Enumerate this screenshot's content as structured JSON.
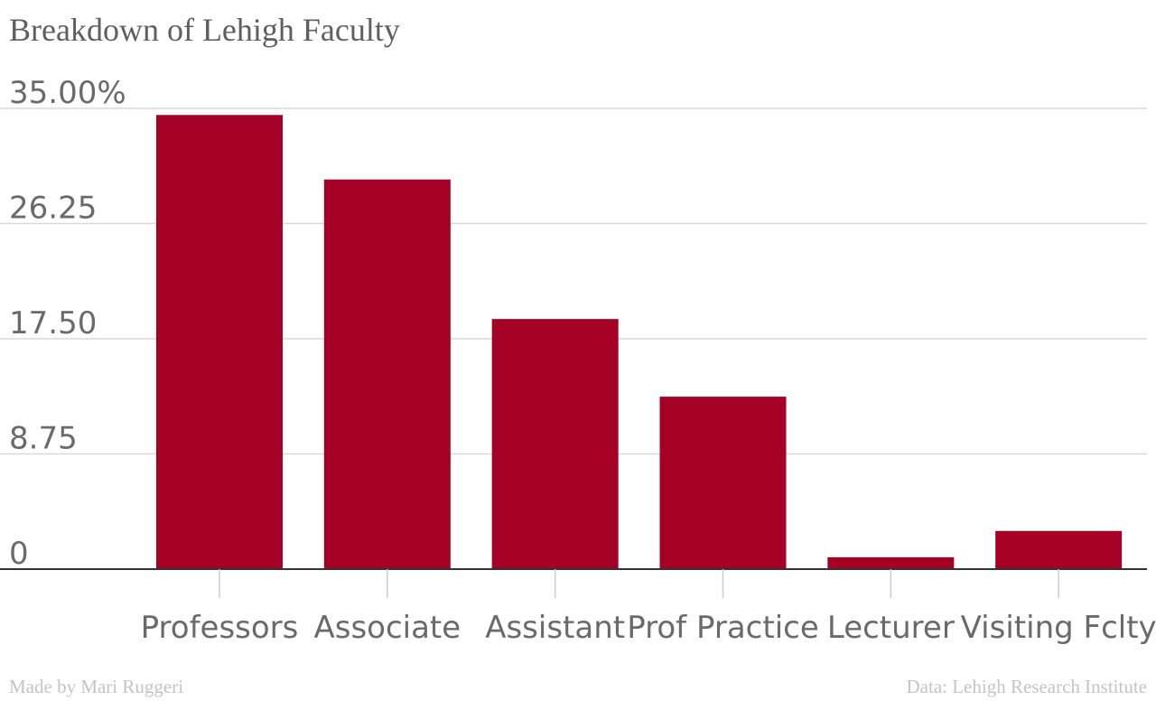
{
  "chart_title": "Breakdown of Lehigh Faculty",
  "footer": {
    "credit": "Made by Mari Ruggeri",
    "source": "Data: Lehigh Research Institute"
  },
  "colors": {
    "bar": "#a50026",
    "grid": "#d9d9d9",
    "axis": "#333333",
    "tick": "#cccccc"
  },
  "chart_data": {
    "type": "bar",
    "categories": [
      "Professors",
      "Associate",
      "Assistant",
      "Prof Practice",
      "Lecturer",
      "Visiting Fclty"
    ],
    "values": [
      34.5,
      29.6,
      19.0,
      13.1,
      0.9,
      2.9
    ],
    "ylim": [
      0,
      35
    ],
    "yticks": [
      0,
      8.75,
      17.5,
      26.25,
      35
    ],
    "ytick_labels": [
      "0",
      "8.75",
      "17.50",
      "26.25",
      "35.00%"
    ],
    "grid": true,
    "xlabel": "",
    "ylabel": ""
  }
}
